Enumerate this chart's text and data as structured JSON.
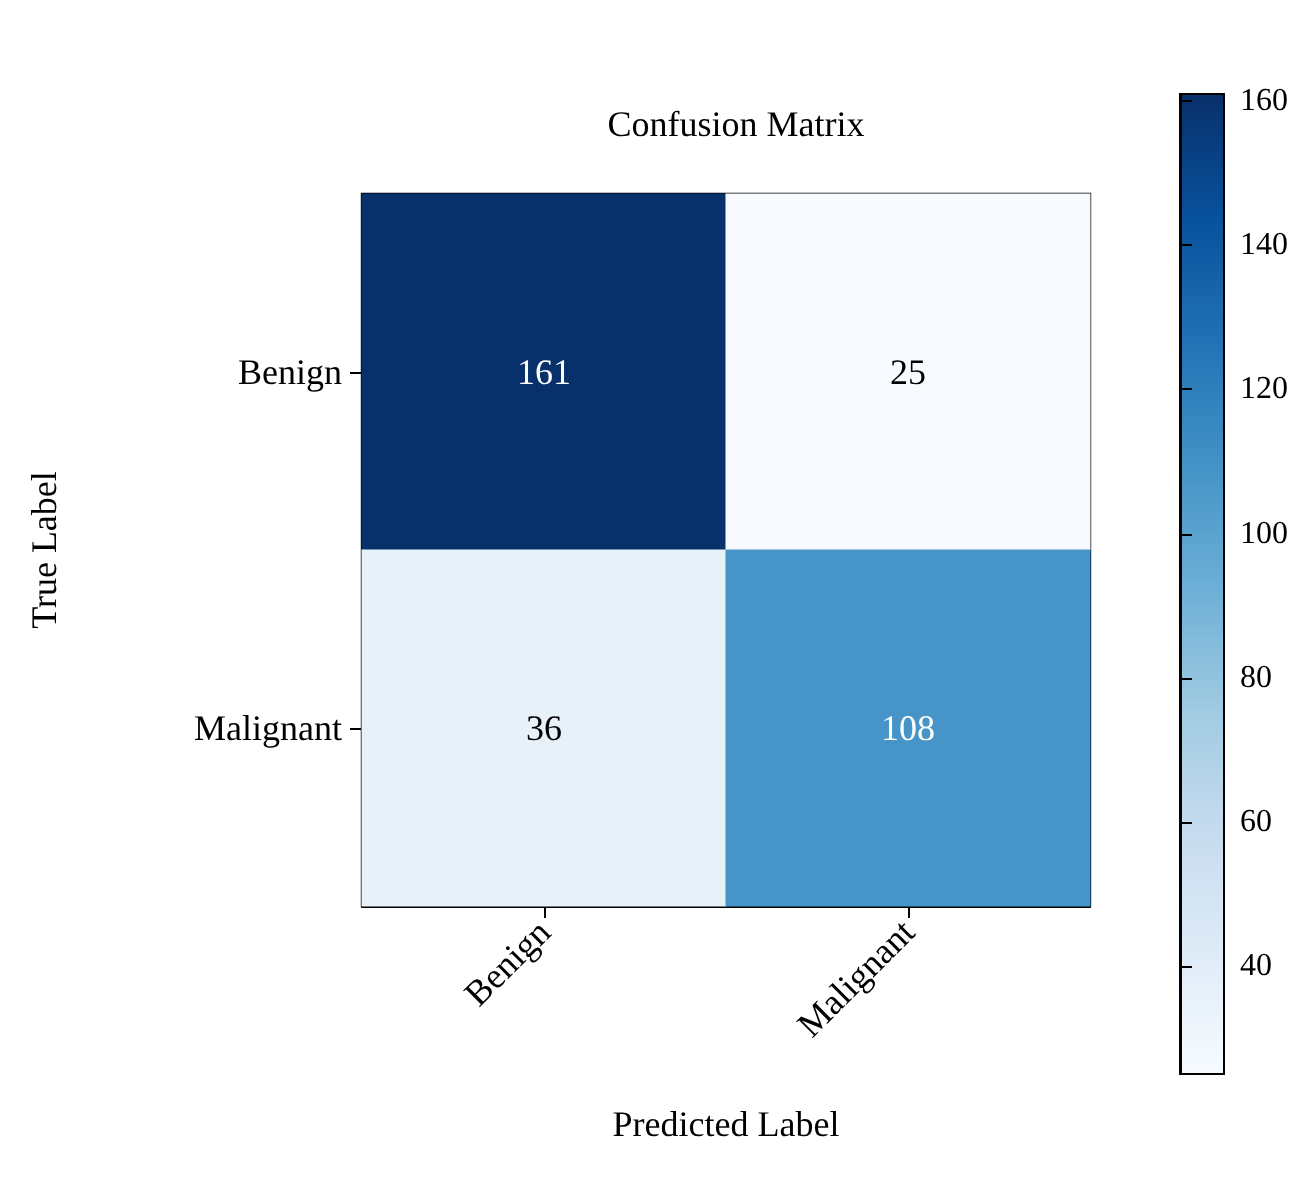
{
  "chart_data": {
    "type": "heatmap",
    "title": "Confusion Matrix",
    "xlabel": "Predicted Label",
    "ylabel": "True Label",
    "categories": [
      "Benign",
      "Malignant"
    ],
    "y_categories": [
      "Benign",
      "Malignant"
    ],
    "cells": [
      [
        161,
        25
      ],
      [
        36,
        108
      ]
    ],
    "clim": [
      25,
      161
    ],
    "cticks": [
      40,
      60,
      80,
      100,
      120,
      140,
      160
    ],
    "data_labels": true
  }
}
